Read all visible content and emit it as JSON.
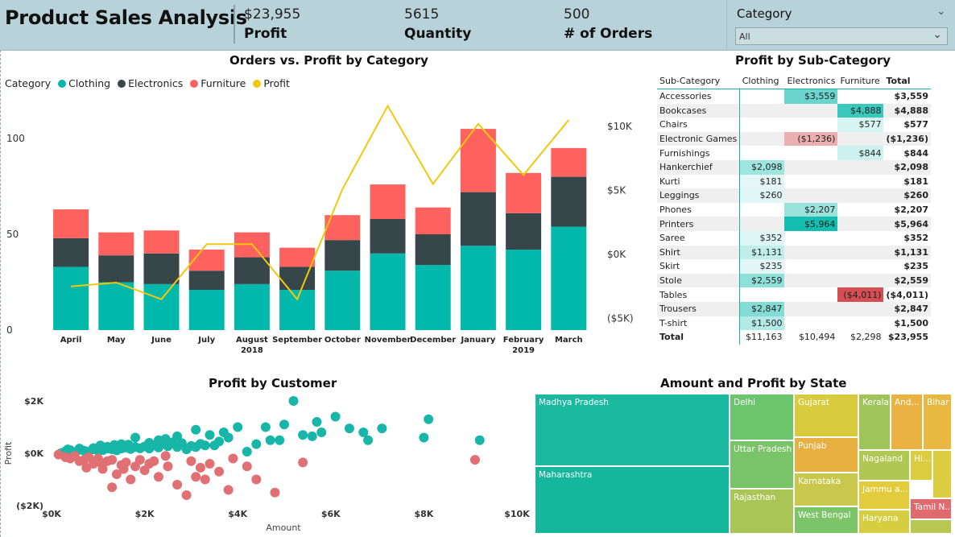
{
  "header": {
    "title": "Product Sales Analysis",
    "kpis": [
      {
        "value": "$23,955",
        "label": "Profit"
      },
      {
        "value": "5615",
        "label": "Quantity"
      },
      {
        "value": "500",
        "label": "# of Orders"
      }
    ]
  },
  "filter": {
    "title": "Category",
    "selected": "All",
    "chevron_icon": "chevron-down-icon"
  },
  "colors": {
    "clothing": "#01b8aa",
    "electronics": "#374649",
    "furniture": "#fd625e",
    "profit": "#f2c80f",
    "scatter_clothing": "#18b6a8",
    "scatter_other": "#e07074"
  },
  "combo": {
    "title": "Orders vs. Profit by Category",
    "legend_label": "Category",
    "legend": [
      "Clothing",
      "Electronics",
      "Furniture",
      "Profit"
    ],
    "year_labels": [
      {
        "after": "August",
        "text": "2018"
      },
      {
        "after": "February",
        "text": "2019"
      }
    ]
  },
  "matrix": {
    "title": "Profit by Sub-Category",
    "headers": [
      "Sub-Category",
      "Clothing",
      "Electronics",
      "Furniture",
      "Total"
    ],
    "rows": [
      {
        "name": "Accessories",
        "clothing": "",
        "electronics": "$3,559",
        "furniture": "",
        "total": "$3,559"
      },
      {
        "name": "Bookcases",
        "clothing": "",
        "electronics": "",
        "furniture": "$4,888",
        "total": "$4,888"
      },
      {
        "name": "Chairs",
        "clothing": "",
        "electronics": "",
        "furniture": "$577",
        "total": "$577"
      },
      {
        "name": "Electronic Games",
        "clothing": "",
        "electronics": "($1,236)",
        "furniture": "",
        "total": "($1,236)"
      },
      {
        "name": "Furnishings",
        "clothing": "",
        "electronics": "",
        "furniture": "$844",
        "total": "$844"
      },
      {
        "name": "Hankerchief",
        "clothing": "$2,098",
        "electronics": "",
        "furniture": "",
        "total": "$2,098"
      },
      {
        "name": "Kurti",
        "clothing": "$181",
        "electronics": "",
        "furniture": "",
        "total": "$181"
      },
      {
        "name": "Leggings",
        "clothing": "$260",
        "electronics": "",
        "furniture": "",
        "total": "$260"
      },
      {
        "name": "Phones",
        "clothing": "",
        "electronics": "$2,207",
        "furniture": "",
        "total": "$2,207"
      },
      {
        "name": "Printers",
        "clothing": "",
        "electronics": "$5,964",
        "furniture": "",
        "total": "$5,964"
      },
      {
        "name": "Saree",
        "clothing": "$352",
        "electronics": "",
        "furniture": "",
        "total": "$352"
      },
      {
        "name": "Shirt",
        "clothing": "$1,131",
        "electronics": "",
        "furniture": "",
        "total": "$1,131"
      },
      {
        "name": "Skirt",
        "clothing": "$235",
        "electronics": "",
        "furniture": "",
        "total": "$235"
      },
      {
        "name": "Stole",
        "clothing": "$2,559",
        "electronics": "",
        "furniture": "",
        "total": "$2,559"
      },
      {
        "name": "Tables",
        "clothing": "",
        "electronics": "",
        "furniture": "($4,011)",
        "total": "($4,011)"
      },
      {
        "name": "Trousers",
        "clothing": "$2,847",
        "electronics": "",
        "furniture": "",
        "total": "$2,847"
      },
      {
        "name": "T-shirt",
        "clothing": "$1,500",
        "electronics": "",
        "furniture": "",
        "total": "$1,500"
      }
    ],
    "total": {
      "name": "Total",
      "clothing": "$11,163",
      "electronics": "$10,494",
      "furniture": "$2,298",
      "total": "$23,955"
    }
  },
  "scatter": {
    "title": "Profit by Customer"
  },
  "treemap": {
    "title": "Amount and Profit by State"
  },
  "chart_data": [
    {
      "type": "bar",
      "title": "Orders vs. Profit by Category",
      "categories": [
        "April",
        "May",
        "June",
        "July",
        "August",
        "September",
        "October",
        "November",
        "December",
        "January",
        "February",
        "March"
      ],
      "stacked": true,
      "series": [
        {
          "name": "Clothing",
          "values": [
            33,
            25,
            24,
            21,
            24,
            21,
            31,
            40,
            34,
            44,
            42,
            54
          ]
        },
        {
          "name": "Electronics",
          "values": [
            15,
            14,
            16,
            10,
            14,
            12,
            16,
            18,
            16,
            28,
            19,
            26
          ]
        },
        {
          "name": "Furniture",
          "values": [
            15,
            12,
            12,
            11,
            13,
            10,
            13,
            18,
            14,
            33,
            21,
            15
          ]
        }
      ],
      "line_series": {
        "name": "Profit",
        "values": [
          -2500,
          -2200,
          -3500,
          800,
          800,
          -3500,
          5100,
          11600,
          5500,
          10200,
          6200,
          10500
        ]
      },
      "y_ticks": [
        "0",
        "50",
        "100"
      ],
      "ylim": [
        0,
        100
      ],
      "y2_ticks": [
        "($5K)",
        "$0K",
        "$5K",
        "$10K"
      ],
      "y2lim": [
        -5000,
        10000
      ],
      "legend_position": "top-left"
    },
    {
      "type": "table",
      "title": "Profit by Sub-Category"
    },
    {
      "type": "scatter",
      "title": "Profit by Customer",
      "xlabel": "Amount",
      "ylabel": "Profit",
      "x_ticks": [
        "$0K",
        "$2K",
        "$4K",
        "$6K",
        "$8K",
        "$10K"
      ],
      "xlim": [
        0,
        10000
      ],
      "y_ticks": [
        "($2K)",
        "$0K",
        "$2K"
      ],
      "ylim": [
        -2000,
        2000
      ],
      "series": [
        {
          "name": "positive",
          "points": [
            [
              200,
              0
            ],
            [
              300,
              80
            ],
            [
              400,
              120
            ],
            [
              500,
              50
            ],
            [
              600,
              130
            ],
            [
              700,
              100
            ],
            [
              800,
              70
            ],
            [
              900,
              150
            ],
            [
              1000,
              100
            ],
            [
              1100,
              120
            ],
            [
              1200,
              180
            ],
            [
              1300,
              150
            ],
            [
              1400,
              110
            ],
            [
              1500,
              180
            ],
            [
              1600,
              220
            ],
            [
              1700,
              160
            ],
            [
              1800,
              240
            ],
            [
              1900,
              190
            ],
            [
              2000,
              260
            ],
            [
              2100,
              180
            ],
            [
              2200,
              300
            ],
            [
              2300,
              220
            ],
            [
              2400,
              350
            ],
            [
              2500,
              270
            ],
            [
              2600,
              420
            ],
            [
              2700,
              240
            ],
            [
              2800,
              390
            ],
            [
              2900,
              150
            ],
            [
              3000,
              280
            ],
            [
              3100,
              240
            ],
            [
              3200,
              360
            ],
            [
              3300,
              300
            ],
            [
              3400,
              700
            ],
            [
              3500,
              300
            ],
            [
              3600,
              450
            ],
            [
              3800,
              600
            ],
            [
              4000,
              1000
            ],
            [
              4200,
              60
            ],
            [
              4400,
              350
            ],
            [
              4600,
              1000
            ],
            [
              4700,
              500
            ],
            [
              4900,
              500
            ],
            [
              5000,
              1100
            ],
            [
              5200,
              2000
            ],
            [
              5400,
              700
            ],
            [
              5600,
              650
            ],
            [
              5700,
              1200
            ],
            [
              5800,
              800
            ],
            [
              6100,
              1400
            ],
            [
              6800,
              500
            ],
            [
              7100,
              950
            ],
            [
              8100,
              1300
            ],
            [
              8000,
              600
            ],
            [
              9200,
              500
            ],
            [
              6400,
              950
            ],
            [
              6700,
              800
            ],
            [
              1800,
              600
            ],
            [
              2300,
              500
            ],
            [
              3100,
              900
            ],
            [
              2700,
              650
            ],
            [
              3700,
              800
            ],
            [
              2100,
              400
            ],
            [
              1500,
              350
            ],
            [
              1200,
              250
            ],
            [
              900,
              200
            ],
            [
              600,
              180
            ],
            [
              400,
              60
            ],
            [
              350,
              150
            ],
            [
              1050,
              300
            ],
            [
              1350,
              320
            ],
            [
              1650,
              330
            ],
            [
              2450,
              550
            ]
          ]
        },
        {
          "name": "negative",
          "points": [
            [
              150,
              -50
            ],
            [
              300,
              -150
            ],
            [
              400,
              -200
            ],
            [
              500,
              -100
            ],
            [
              600,
              -300
            ],
            [
              700,
              -250
            ],
            [
              800,
              -150
            ],
            [
              900,
              -400
            ],
            [
              1000,
              -200
            ],
            [
              1100,
              -600
            ],
            [
              1200,
              -300
            ],
            [
              1300,
              -250
            ],
            [
              1400,
              -800
            ],
            [
              1500,
              -450
            ],
            [
              1600,
              -350
            ],
            [
              1700,
              -1000
            ],
            [
              1800,
              -500
            ],
            [
              1900,
              -250
            ],
            [
              2000,
              -650
            ],
            [
              2100,
              -400
            ],
            [
              2200,
              -300
            ],
            [
              2300,
              -900
            ],
            [
              2500,
              -500
            ],
            [
              2700,
              -1200
            ],
            [
              3000,
              -300
            ],
            [
              3100,
              -900
            ],
            [
              3300,
              -1000
            ],
            [
              3400,
              -400
            ],
            [
              3600,
              -700
            ],
            [
              3900,
              -200
            ],
            [
              4200,
              -500
            ],
            [
              4400,
              -1000
            ],
            [
              4800,
              -1500
            ],
            [
              5400,
              -350
            ],
            [
              9100,
              -250
            ],
            [
              3800,
              -1400
            ],
            [
              1300,
              -1300
            ],
            [
              2900,
              -1600
            ],
            [
              750,
              -550
            ],
            [
              1550,
              -600
            ],
            [
              2450,
              -100
            ],
            [
              1050,
              -350
            ],
            [
              3200,
              -550
            ]
          ]
        }
      ]
    },
    {
      "type": "treemap",
      "title": "Amount and Profit by State",
      "items": [
        {
          "name": "Madhya Pradesh",
          "color": "#1bbaa0"
        },
        {
          "name": "Maharashtra",
          "color": "#14b69c"
        },
        {
          "name": "Delhi",
          "color": "#6cc46c"
        },
        {
          "name": "Uttar Pradesh",
          "color": "#7ac468"
        },
        {
          "name": "Rajasthan",
          "color": "#a9c556"
        },
        {
          "name": "Gujarat",
          "color": "#d8cc3e"
        },
        {
          "name": "Punjab",
          "color": "#e8b040"
        },
        {
          "name": "Karnataka",
          "color": "#c8c84c"
        },
        {
          "name": "West Bengal",
          "color": "#7cc468"
        },
        {
          "name": "Kerala",
          "color": "#9ec45a"
        },
        {
          "name": "And...",
          "color": "#eab242"
        },
        {
          "name": "Bihar",
          "color": "#e8b840"
        },
        {
          "name": "Nagaland",
          "color": "#b2c654"
        },
        {
          "name": "Hi...",
          "color": "#dccc40"
        },
        {
          "name": "Jammu a...",
          "color": "#e2cc3c"
        },
        {
          "name": "Haryana",
          "color": "#d4ce40"
        },
        {
          "name": "Tamil N...",
          "color": "#e06a6e"
        }
      ]
    }
  ]
}
